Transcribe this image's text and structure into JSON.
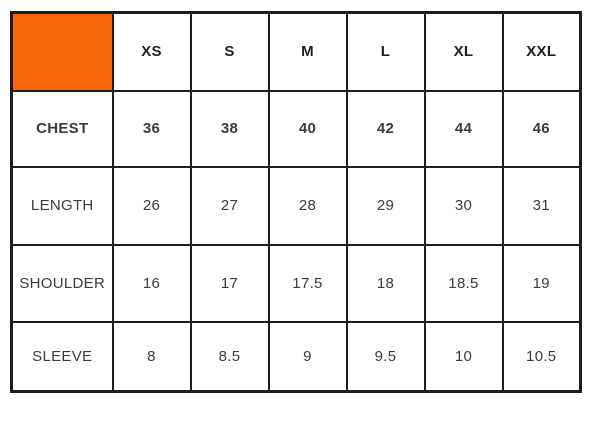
{
  "colors": {
    "accent_orange": "#f8660b",
    "border": "#1d1d1d",
    "text_regular": "#3c3c3c",
    "text_bold": "#212121"
  },
  "chart_data": {
    "type": "table",
    "title": "",
    "corner_cell": "",
    "categories": [
      "XS",
      "S",
      "M",
      "L",
      "XL",
      "XXL"
    ],
    "rows": [
      {
        "label": "CHEST",
        "values": [
          "36",
          "38",
          "40",
          "42",
          "44",
          "46"
        ]
      },
      {
        "label": "LENGTH",
        "values": [
          "26",
          "27",
          "28",
          "29",
          "30",
          "31"
        ]
      },
      {
        "label": "SHOULDER",
        "values": [
          "16",
          "17",
          "17.5",
          "18",
          "18.5",
          "19"
        ]
      },
      {
        "label": "SLEEVE",
        "values": [
          "8",
          "8.5",
          "9",
          "9.5",
          "10",
          "10.5"
        ]
      }
    ]
  }
}
